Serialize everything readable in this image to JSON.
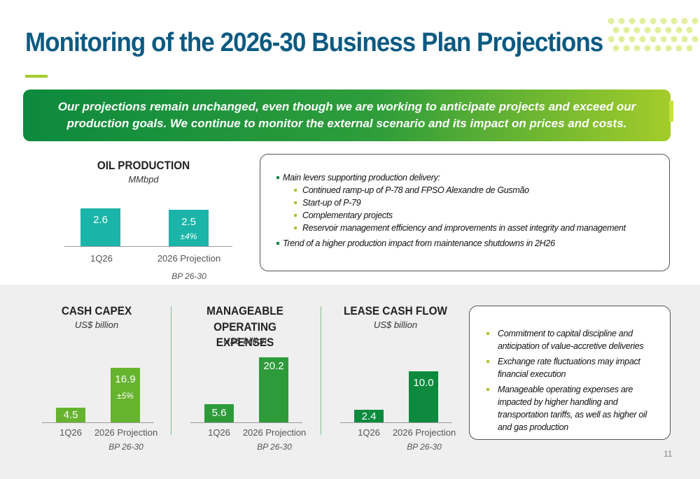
{
  "title": "Monitoring of the 2026-30 Business Plan Projections",
  "banner": "Our projections remain unchanged, even though we are working to anticipate projects and exceed our production goals. We continue to monitor the external scenario and its impact on prices and costs.",
  "colors": {
    "teal": "#1bb4a8",
    "green_dark": "#2e9b3b",
    "green_light": "#66b32e",
    "title": "#0b5a82"
  },
  "oil_production": {
    "title": "OIL PRODUCTION",
    "unit": "MMbpd",
    "chart_data": {
      "type": "bar",
      "categories": [
        "1Q26",
        "2026 Projection"
      ],
      "values": [
        2.6,
        2.5
      ],
      "labels": [
        "2.6",
        "2.5"
      ],
      "note": "±4%",
      "category_sub": "BP 26-30",
      "ylim": [
        0,
        2.6
      ]
    }
  },
  "production_levers": {
    "items": [
      {
        "level": 1,
        "text": "Main levers supporting production delivery:"
      },
      {
        "level": 2,
        "text": "Continued ramp-up of P-78 and FPSO Alexandre de Gusmão"
      },
      {
        "level": 2,
        "text": "Start-up of P-79"
      },
      {
        "level": 2,
        "text": "Complementary projects"
      },
      {
        "level": 2,
        "text": "Reservoir management efficiency and improvements in asset integrity and management"
      },
      {
        "level": 1,
        "text": "Trend of a higher production impact from maintenance shutdowns in 2H26"
      }
    ]
  },
  "cash_capex": {
    "title": "CASH CAPEX",
    "unit": "US$ billion",
    "chart_data": {
      "type": "bar",
      "categories": [
        "1Q26",
        "2026 Projection"
      ],
      "values": [
        4.5,
        16.9
      ],
      "labels": [
        "4.5",
        "16.9"
      ],
      "note": "±5%",
      "category_sub": "BP 26-30",
      "ylim": [
        0,
        20.2
      ]
    }
  },
  "opex": {
    "title_line1": "MANAGEABLE",
    "title_line2": "OPERATING EXPENSES",
    "unit": "US$ billion",
    "chart_data": {
      "type": "bar",
      "categories": [
        "1Q26",
        "2026 Projection"
      ],
      "values": [
        5.6,
        20.2
      ],
      "labels": [
        "5.6",
        "20.2"
      ],
      "category_sub": "BP 26-30",
      "ylim": [
        0,
        20.2
      ]
    }
  },
  "lease": {
    "title": "LEASE CASH FLOW",
    "unit": "US$ billion",
    "chart_data": {
      "type": "bar",
      "categories": [
        "1Q26",
        "2026 Projection"
      ],
      "values": [
        2.4,
        10.0
      ],
      "labels": [
        "2.4",
        "10.0"
      ],
      "category_sub": "BP 26-30",
      "ylim": [
        0,
        14.3
      ]
    }
  },
  "capital_notes": [
    "Commitment to capital discipline and anticipation of value-accretive deliveries",
    "Exchange rate fluctuations may impact financial execution",
    "Manageable operating expenses are impacted by higher handling and transportation tariffs, as well as higher oil and gas production"
  ],
  "page_number": "11"
}
